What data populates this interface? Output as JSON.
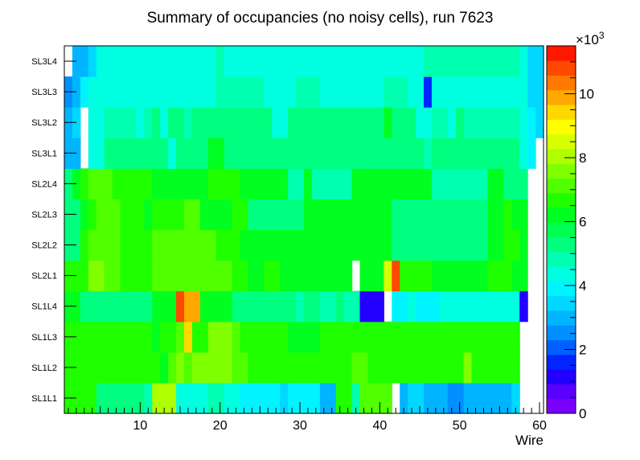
{
  "chart_data": {
    "type": "heatmap",
    "title": "Summary of occupancies (no noisy cells), run 7623",
    "xlabel": "Wire",
    "ylabel": "",
    "xlim": [
      0.5,
      60.5
    ],
    "x_ticks": [
      10,
      20,
      30,
      40,
      50,
      60
    ],
    "rows": [
      "SL1L1",
      "SL1L2",
      "SL1L3",
      "SL1L4",
      "SL2L1",
      "SL2L2",
      "SL2L3",
      "SL2L4",
      "SL3L1",
      "SL3L2",
      "SL3L3",
      "SL3L4"
    ],
    "colorbar": {
      "multiplier_label": "×10",
      "multiplier_exponent": "3",
      "zlim": [
        0,
        11500
      ],
      "tick_values": [
        0,
        2000,
        4000,
        6000,
        8000,
        10000
      ],
      "tick_labels": [
        "0",
        "2",
        "4",
        "6",
        "8",
        "10"
      ],
      "palette": [
        "#7900ff",
        "#5a00ff",
        "#2200ff",
        "#0025ff",
        "#0060ff",
        "#0090ff",
        "#00b4ff",
        "#00d8ff",
        "#00f4ff",
        "#00ffe0",
        "#00ffb0",
        "#00ff80",
        "#00ff50",
        "#00ff20",
        "#20ff00",
        "#50ff00",
        "#80ff00",
        "#b0ff00",
        "#d8ff00",
        "#ffff00",
        "#ffd800",
        "#ffa800",
        "#ff7800",
        "#ff4800",
        "#ff1800"
      ]
    },
    "z": [
      [
        6500,
        6500,
        6500,
        6500,
        5500,
        5500,
        5500,
        5500,
        5500,
        5500,
        4800,
        8000,
        8000,
        8000,
        4500,
        4500,
        4500,
        4500,
        5000,
        5000,
        4500,
        4500,
        4000,
        4000,
        4000,
        4000,
        4000,
        3500,
        4000,
        4000,
        4000,
        4000,
        3000,
        3000,
        6500,
        6500,
        5000,
        7000,
        7000,
        7000,
        7000,
        0,
        3000,
        3500,
        3500,
        3000,
        3000,
        3000,
        2500,
        2500,
        3000,
        3000,
        3000,
        3000,
        3000,
        3000,
        3500,
        0,
        0,
        0
      ],
      [
        6500,
        6500,
        6500,
        6500,
        6500,
        6500,
        6500,
        6500,
        6500,
        6500,
        6500,
        6500,
        6000,
        7000,
        7500,
        7000,
        7500,
        7500,
        7500,
        7500,
        7500,
        7000,
        7000,
        6500,
        6500,
        6500,
        6500,
        6500,
        6500,
        6500,
        6500,
        6500,
        6500,
        6500,
        6500,
        6500,
        7000,
        7000,
        6500,
        6500,
        6500,
        6500,
        6500,
        6500,
        6500,
        6500,
        6500,
        6500,
        6500,
        6500,
        7500,
        6500,
        6500,
        6500,
        6500,
        6500,
        6500,
        0,
        0,
        0
      ],
      [
        6500,
        6500,
        6500,
        6500,
        6500,
        6500,
        6500,
        6500,
        6500,
        6500,
        6500,
        6000,
        6500,
        6500,
        7000,
        9500,
        6500,
        6500,
        7500,
        7500,
        7500,
        7000,
        6500,
        6500,
        6500,
        6500,
        6500,
        6500,
        6000,
        6000,
        6000,
        6000,
        6500,
        6500,
        6500,
        6500,
        6500,
        6500,
        6500,
        6500,
        6500,
        6500,
        6500,
        6500,
        6500,
        6500,
        6500,
        6500,
        6500,
        6500,
        6500,
        6500,
        6500,
        6500,
        6500,
        6500,
        6500,
        0,
        0,
        0
      ],
      [
        6000,
        6000,
        5500,
        5500,
        5500,
        5500,
        5500,
        5500,
        5500,
        5500,
        5500,
        6000,
        6000,
        6000,
        11000,
        10000,
        10000,
        6000,
        6000,
        6000,
        6000,
        5500,
        5500,
        5500,
        5500,
        5500,
        5500,
        5500,
        5500,
        5000,
        5500,
        5500,
        5000,
        5000,
        5500,
        5000,
        5000,
        1000,
        1000,
        1000,
        0,
        4000,
        4000,
        4500,
        4000,
        4000,
        4000,
        4500,
        4500,
        4500,
        4500,
        4500,
        4500,
        4500,
        4500,
        4500,
        4500,
        1000,
        0,
        0
      ],
      [
        6500,
        6500,
        6500,
        7500,
        7500,
        7000,
        7000,
        6500,
        6500,
        6500,
        6500,
        7000,
        7000,
        7000,
        7000,
        7000,
        7000,
        7000,
        7000,
        7000,
        7000,
        6500,
        6500,
        6000,
        6000,
        6500,
        6500,
        6000,
        6000,
        6000,
        6000,
        6000,
        6000,
        6000,
        6000,
        6000,
        0,
        6000,
        6000,
        6000,
        8500,
        11000,
        6500,
        6500,
        6500,
        6500,
        6000,
        6000,
        6000,
        6000,
        6000,
        6000,
        6000,
        6500,
        6500,
        6500,
        6000,
        6000,
        0,
        0
      ],
      [
        5500,
        5500,
        6500,
        7000,
        7000,
        7000,
        7000,
        6500,
        6500,
        6500,
        6500,
        7000,
        7000,
        7000,
        7000,
        7000,
        7000,
        7000,
        7000,
        6500,
        6500,
        6500,
        6000,
        6000,
        6000,
        6000,
        6000,
        6000,
        6000,
        6000,
        6000,
        6000,
        6000,
        6000,
        6000,
        6000,
        6000,
        6000,
        6000,
        6000,
        6000,
        5500,
        5500,
        5500,
        5500,
        5500,
        5500,
        5500,
        5500,
        5500,
        5500,
        5500,
        5500,
        6000,
        6000,
        6500,
        6500,
        6000,
        0,
        0
      ],
      [
        5500,
        5500,
        6000,
        6500,
        7000,
        7000,
        7000,
        6500,
        6500,
        6500,
        6000,
        6500,
        6500,
        6500,
        6500,
        7000,
        7000,
        6000,
        6000,
        6000,
        6000,
        6500,
        6500,
        5500,
        5500,
        5500,
        5500,
        5500,
        5500,
        5500,
        6000,
        6000,
        6000,
        6000,
        6000,
        6000,
        6000,
        6000,
        6000,
        6000,
        6000,
        5500,
        5500,
        5500,
        5500,
        5500,
        5500,
        5500,
        5500,
        5500,
        5500,
        5500,
        5500,
        6000,
        6000,
        6500,
        6000,
        6000,
        0,
        0
      ],
      [
        5500,
        6000,
        6500,
        7000,
        7000,
        7000,
        6500,
        6500,
        6500,
        6500,
        6500,
        6000,
        6000,
        6000,
        6000,
        6000,
        6000,
        6000,
        6500,
        6500,
        6500,
        6500,
        6000,
        6000,
        6000,
        6000,
        6000,
        6000,
        5000,
        5000,
        6000,
        5000,
        5000,
        5000,
        5000,
        5000,
        6000,
        6000,
        6000,
        6000,
        6000,
        6000,
        6000,
        6000,
        6000,
        6000,
        5000,
        5000,
        5000,
        5000,
        5000,
        5000,
        5000,
        6000,
        6000,
        5500,
        5500,
        5500,
        0,
        0
      ],
      [
        3000,
        3000,
        0,
        4500,
        4500,
        5500,
        5500,
        5500,
        5500,
        5500,
        5500,
        5500,
        5500,
        4500,
        5500,
        5500,
        5500,
        5500,
        6000,
        6000,
        5500,
        5500,
        5500,
        5500,
        5500,
        5500,
        5500,
        5500,
        5500,
        5500,
        5500,
        5500,
        5500,
        5500,
        5500,
        5500,
        5500,
        5500,
        5500,
        5500,
        5500,
        5500,
        5500,
        5500,
        5500,
        5000,
        5500,
        5500,
        5500,
        5500,
        5500,
        5500,
        5500,
        5500,
        5500,
        5500,
        5500,
        4500,
        4000,
        0
      ],
      [
        3000,
        3500,
        0,
        4500,
        4500,
        5000,
        5000,
        5000,
        5000,
        4500,
        5000,
        5500,
        4500,
        5500,
        5500,
        5000,
        5500,
        5500,
        5500,
        5500,
        5500,
        5500,
        5500,
        5500,
        5500,
        5500,
        4500,
        4500,
        5500,
        5500,
        5500,
        5500,
        5500,
        5500,
        5500,
        5500,
        5500,
        5500,
        5500,
        5500,
        6000,
        5500,
        5500,
        5500,
        4500,
        4500,
        5000,
        5000,
        4500,
        5500,
        5000,
        5000,
        5000,
        5000,
        5000,
        5000,
        5000,
        4500,
        4000,
        3500
      ],
      [
        2500,
        3000,
        4000,
        4500,
        4500,
        4500,
        4500,
        4500,
        4500,
        4500,
        4500,
        4500,
        4500,
        4500,
        4500,
        4500,
        4500,
        4500,
        4500,
        5000,
        5000,
        5000,
        5000,
        5000,
        5000,
        4500,
        4500,
        4500,
        4500,
        5000,
        5000,
        5000,
        4500,
        4500,
        4500,
        4500,
        4500,
        4500,
        4500,
        4500,
        5000,
        5000,
        5000,
        4500,
        4500,
        1500,
        4500,
        4500,
        4500,
        4500,
        4500,
        4500,
        4500,
        4500,
        4500,
        4500,
        4500,
        4500,
        3500,
        3500
      ],
      [
        0,
        3000,
        3000,
        3500,
        4500,
        4500,
        4500,
        4500,
        4500,
        4500,
        4500,
        4500,
        4500,
        4500,
        4500,
        4500,
        4500,
        4500,
        4500,
        5000,
        4500,
        4500,
        4500,
        4500,
        4500,
        4500,
        4500,
        4500,
        4500,
        4500,
        4500,
        4500,
        4500,
        4500,
        4500,
        4500,
        4500,
        4500,
        4500,
        4500,
        4500,
        4500,
        4500,
        4500,
        4500,
        5000,
        5000,
        5000,
        5000,
        5000,
        5000,
        5000,
        5000,
        5000,
        5000,
        5000,
        5000,
        4500,
        3500,
        3500
      ]
    ]
  }
}
